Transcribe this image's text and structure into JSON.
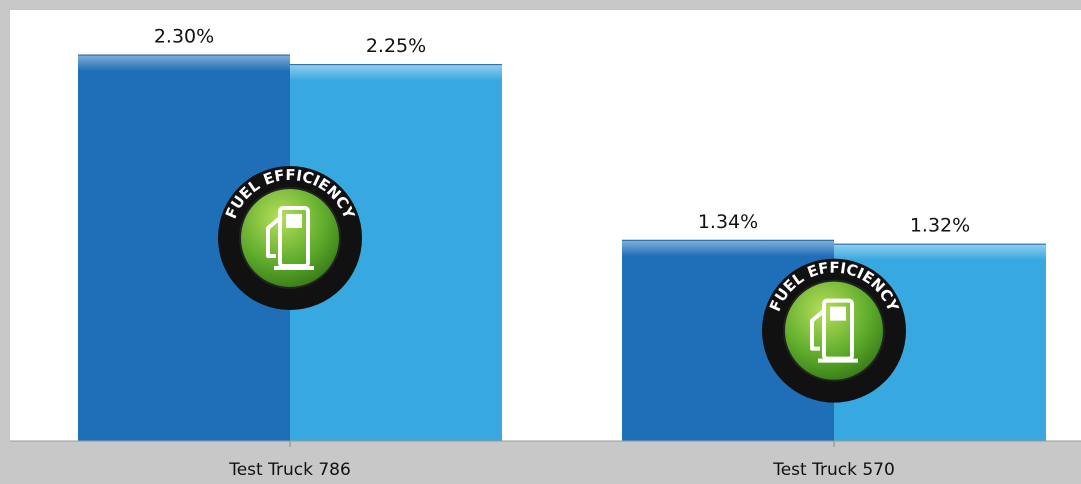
{
  "chart_data": {
    "type": "bar",
    "categories": [
      "Test Truck 786",
      "Test Truck 570"
    ],
    "series": [
      {
        "color": "#1f6fb8",
        "values": [
          2.3,
          1.34
        ],
        "value_labels": [
          "2.30%",
          "1.34%"
        ]
      },
      {
        "color": "#38a8e0",
        "values": [
          2.25,
          1.32
        ],
        "value_labels": [
          "2.25%",
          "1.32%"
        ]
      }
    ],
    "ylim": [
      0.3,
      2.45
    ],
    "badge_text": "FUEL EFFICIENCY"
  }
}
